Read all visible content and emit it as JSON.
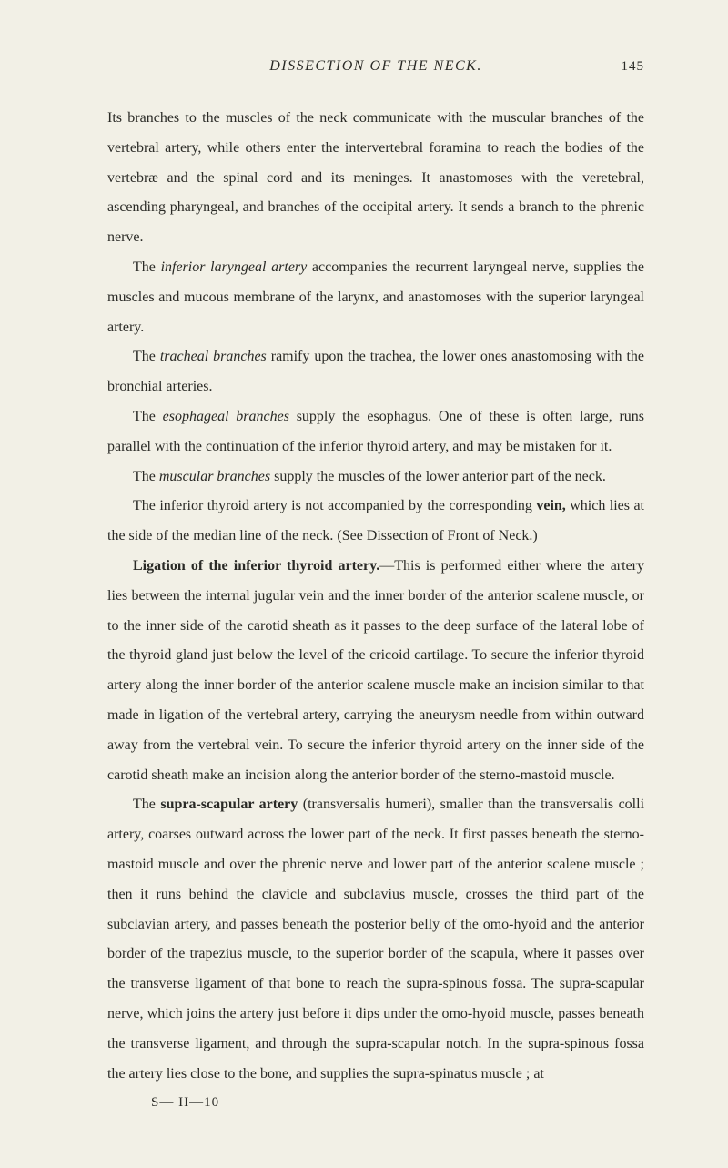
{
  "header": {
    "running_title": "DISSECTION OF THE NECK.",
    "page_number": "145"
  },
  "paragraphs": {
    "p1_a": "Its branches to the muscles of the neck communicate with the muscular branches of the vertebral artery, while others enter the intervertebral foramina to reach the bodies of the vertebræ and the spinal cord and its meninges. It anastomoses with the veretebral, ascending pharyngeal, and branches of the occipital artery. It sends a branch to the phrenic nerve.",
    "p2_pre": "The ",
    "p2_i": "inferior laryngeal artery",
    "p2_post": " accompanies the recurrent laryngeal nerve, supplies the muscles and mucous membrane of the larynx, and anastomoses with the superior laryngeal artery.",
    "p3_pre": "The ",
    "p3_i": "tracheal branches",
    "p3_post": " ramify upon the trachea, the lower ones anastomosing with the bronchial arteries.",
    "p4_pre": "The ",
    "p4_i": "esophageal branches",
    "p4_post": " supply the esophagus. One of these is often large, runs parallel with the continuation of the inferior thyroid artery, and may be mistaken for it.",
    "p5_pre": "The ",
    "p5_i": "muscular branches",
    "p5_post": " supply the muscles of the lower anterior part of the neck.",
    "p6_pre": "The inferior thyroid artery is not accompanied by the corresponding ",
    "p6_b": "vein,",
    "p6_post": " which lies at the side of the median line of the neck. (See Dissection of Front of Neck.)",
    "p7_b": "Ligation of the inferior thyroid artery.",
    "p7_post": "—This is performed either where the artery lies between the internal jugular vein and the inner border of the anterior scalene muscle, or to the inner side of the carotid sheath as it passes to the deep surface of the lateral lobe of the thyroid gland just below the level of the cricoid cartilage. To secure the inferior thyroid artery along the inner border of the anterior scalene muscle make an incision similar to that made in ligation of the vertebral artery, carrying the aneurysm needle from within outward away from the vertebral vein. To secure the inferior thyroid artery on the inner side of the carotid sheath make an incision along the anterior border of the sterno-mastoid muscle.",
    "p8_pre": "The ",
    "p8_b": "supra-scapular artery",
    "p8_post": " (transversalis humeri), smaller than the transversalis colli artery, coarses outward across the lower part of the neck. It first passes beneath the sterno-mastoid muscle and over the phrenic nerve and lower part of the anterior scalene muscle ; then it runs behind the clavicle and subclavius muscle, crosses the third part of the subclavian artery, and passes beneath the posterior belly of the omo-hyoid and the anterior border of the trapezius muscle, to the superior border of the scapula, where it passes over the transverse ligament of that bone to reach the supra-spinous fossa. The supra-scapular nerve, which joins the artery just before it dips under the omo-hyoid muscle, passes beneath the transverse ligament, and through the supra-scapular notch. In the supra-spinous fossa the artery lies close to the bone, and supplies the supra-spinatus muscle ; at",
    "sig": "S— II—10"
  }
}
